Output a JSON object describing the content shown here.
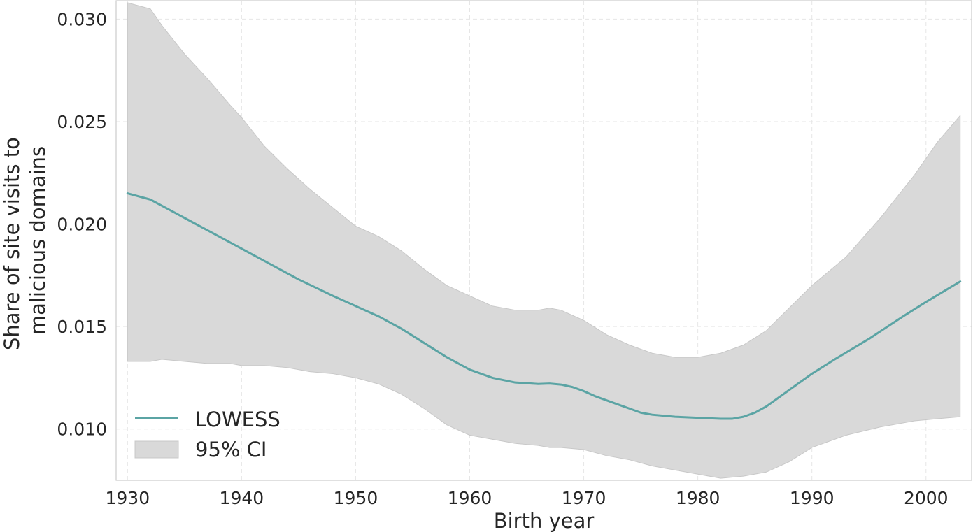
{
  "chart_data": {
    "type": "line",
    "title": "",
    "xlabel": "Birth year",
    "ylabel": [
      "Share of site visits to",
      "malicious domains"
    ],
    "xlim": [
      1929,
      2004
    ],
    "ylim": [
      0.0075,
      0.0309
    ],
    "xticks": [
      1930,
      1940,
      1950,
      1960,
      1970,
      1980,
      1990,
      2000
    ],
    "xtick_labels": [
      "1930",
      "1940",
      "1950",
      "1960",
      "1970",
      "1980",
      "1990",
      "2000"
    ],
    "yticks": [
      0.01,
      0.015,
      0.02,
      0.025,
      0.03
    ],
    "ytick_labels": [
      "0.010",
      "0.015",
      "0.020",
      "0.025",
      "0.030"
    ],
    "grid": true,
    "legend_position": "lower-left",
    "colors": {
      "line": "#5ba4a4",
      "band": "#d9d9d9",
      "band_edge": "#c8c8c8"
    },
    "series": [
      {
        "name": "LOWESS",
        "kind": "line",
        "x": [
          1930,
          1932,
          1933,
          1935,
          1937,
          1940,
          1942,
          1945,
          1948,
          1950,
          1952,
          1954,
          1956,
          1958,
          1960,
          1962,
          1964,
          1966,
          1967,
          1968,
          1969,
          1970,
          1971,
          1972,
          1973,
          1974,
          1975,
          1976,
          1978,
          1980,
          1982,
          1983,
          1984,
          1985,
          1986,
          1987,
          1988,
          1989,
          1990,
          1992,
          1995,
          1998,
          2000,
          2003
        ],
        "y": [
          0.0215,
          0.0212,
          0.0209,
          0.0203,
          0.0197,
          0.0188,
          0.0182,
          0.0173,
          0.0165,
          0.016,
          0.0155,
          0.0149,
          0.0142,
          0.0135,
          0.0129,
          0.0125,
          0.01227,
          0.0122,
          0.01222,
          0.01217,
          0.01205,
          0.01185,
          0.0116,
          0.0114,
          0.0112,
          0.011,
          0.0108,
          0.0107,
          0.0106,
          0.01055,
          0.0105,
          0.0105,
          0.0106,
          0.0108,
          0.0111,
          0.0115,
          0.0119,
          0.0123,
          0.0127,
          0.0134,
          0.0144,
          0.0155,
          0.0162,
          0.0172
        ]
      },
      {
        "name": "95% CI",
        "kind": "band",
        "x": [
          1930,
          1932,
          1933,
          1935,
          1937,
          1939,
          1940,
          1942,
          1944,
          1946,
          1948,
          1950,
          1952,
          1954,
          1956,
          1958,
          1960,
          1962,
          1964,
          1966,
          1967,
          1968,
          1970,
          1972,
          1974,
          1976,
          1978,
          1980,
          1982,
          1984,
          1986,
          1988,
          1990,
          1993,
          1996,
          1999,
          2001,
          2003
        ],
        "upper": [
          0.0308,
          0.0305,
          0.0297,
          0.0283,
          0.0271,
          0.0258,
          0.0252,
          0.0238,
          0.0227,
          0.0217,
          0.0208,
          0.0199,
          0.0194,
          0.0187,
          0.0178,
          0.017,
          0.0165,
          0.016,
          0.0158,
          0.0158,
          0.0159,
          0.0158,
          0.0153,
          0.0146,
          0.0141,
          0.0137,
          0.0135,
          0.0135,
          0.0137,
          0.0141,
          0.0148,
          0.0159,
          0.017,
          0.0184,
          0.0203,
          0.0224,
          0.024,
          0.0253
        ],
        "lower": [
          0.0133,
          0.0133,
          0.0134,
          0.0133,
          0.0132,
          0.0132,
          0.0131,
          0.0131,
          0.013,
          0.0128,
          0.0127,
          0.0125,
          0.0122,
          0.0117,
          0.011,
          0.0102,
          0.0097,
          0.0095,
          0.0093,
          0.0092,
          0.0091,
          0.0091,
          0.009,
          0.0087,
          0.0085,
          0.0082,
          0.008,
          0.0078,
          0.0076,
          0.0077,
          0.0079,
          0.0084,
          0.0091,
          0.0097,
          0.0101,
          0.0104,
          0.0105,
          0.0106
        ]
      }
    ]
  }
}
